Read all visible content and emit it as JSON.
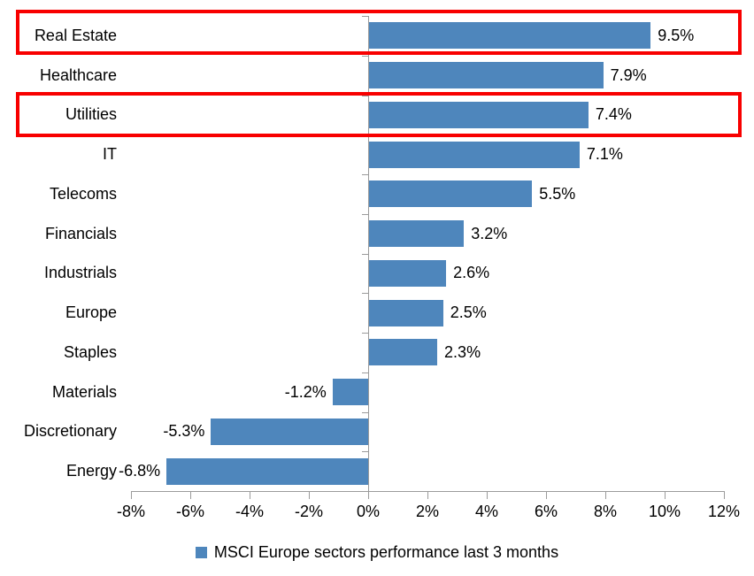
{
  "chart_data": {
    "type": "bar",
    "orientation": "horizontal",
    "legend_label": "MSCI Europe sectors performance last 3 months",
    "legend_position": "bottom-center",
    "categories": [
      "Real Estate",
      "Healthcare",
      "Utilities",
      "IT",
      "Telecoms",
      "Financials",
      "Industrials",
      "Europe",
      "Staples",
      "Materials",
      "Discretionary",
      "Energy"
    ],
    "values": [
      9.5,
      7.9,
      7.4,
      7.1,
      5.5,
      3.2,
      2.6,
      2.5,
      2.3,
      -1.2,
      -5.3,
      -6.8
    ],
    "value_labels": [
      "9.5%",
      "7.9%",
      "7.4%",
      "7.1%",
      "5.5%",
      "3.2%",
      "2.6%",
      "2.5%",
      "2.3%",
      "-1.2%",
      "-5.3%",
      "-6.8%"
    ],
    "x_tick_labels": [
      "-8%",
      "-6%",
      "-4%",
      "-2%",
      "0%",
      "2%",
      "4%",
      "6%",
      "8%",
      "10%",
      "12%"
    ],
    "x_tick_values": [
      -8,
      -6,
      -4,
      -2,
      0,
      2,
      4,
      6,
      8,
      10,
      12
    ],
    "xlim": [
      -8,
      12
    ],
    "grid": "off",
    "highlighted_categories": [
      "Real Estate",
      "Utilities"
    ],
    "colors": {
      "bar": "#4E86BC",
      "axis": "#9B9B9B",
      "highlight_border": "#F80000",
      "text": "#000000"
    }
  }
}
